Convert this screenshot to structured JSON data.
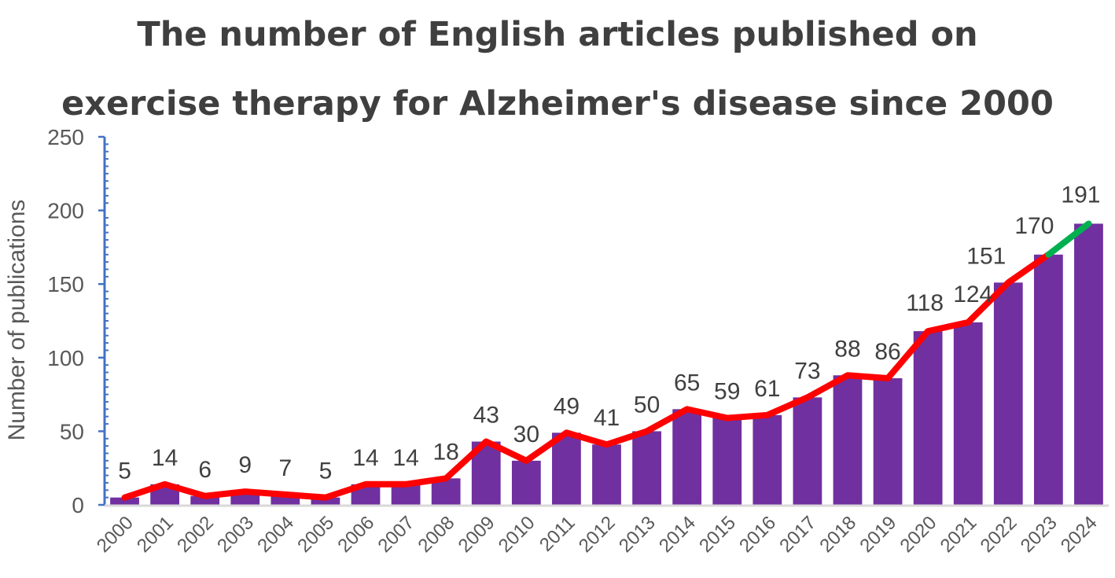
{
  "chart_data": {
    "type": "bar",
    "title_lines": [
      "The number of English articles published on",
      "exercise therapy for Alzheimer's disease since 2000"
    ],
    "xlabel": "",
    "ylabel": "Number of publications",
    "ylim": [
      0,
      250
    ],
    "yticks": [
      "0",
      "50",
      "100",
      "150",
      "200",
      "250"
    ],
    "categories": [
      "2000",
      "2001",
      "2002",
      "2003",
      "2004",
      "2005",
      "2006",
      "2007",
      "2008",
      "2009",
      "2010",
      "2011",
      "2012",
      "2013",
      "2014",
      "2015",
      "2016",
      "2017",
      "2018",
      "2019",
      "2020",
      "2021",
      "2022",
      "2023",
      "2024"
    ],
    "values": [
      5,
      14,
      6,
      9,
      7,
      5,
      14,
      14,
      18,
      43,
      30,
      49,
      41,
      50,
      65,
      59,
      61,
      73,
      88,
      86,
      118,
      124,
      151,
      170,
      191
    ],
    "data_labels": [
      "5",
      "14",
      "6",
      "9",
      "7",
      "5",
      "14",
      "14",
      "18",
      "43",
      "30",
      "49",
      "41",
      "50",
      "65",
      "59",
      "61",
      "73",
      "88",
      "86",
      "118",
      "124",
      "151",
      "170",
      "191"
    ],
    "trend_line": {
      "overlay": "line through bar values",
      "color": "#ff0000",
      "highlight_last_segment_color": "#00b050"
    },
    "colors": {
      "bar": "#7030a0",
      "axis": "#4472c4",
      "baseline": "#d9d9d9"
    },
    "grid": false,
    "legend": "none"
  }
}
